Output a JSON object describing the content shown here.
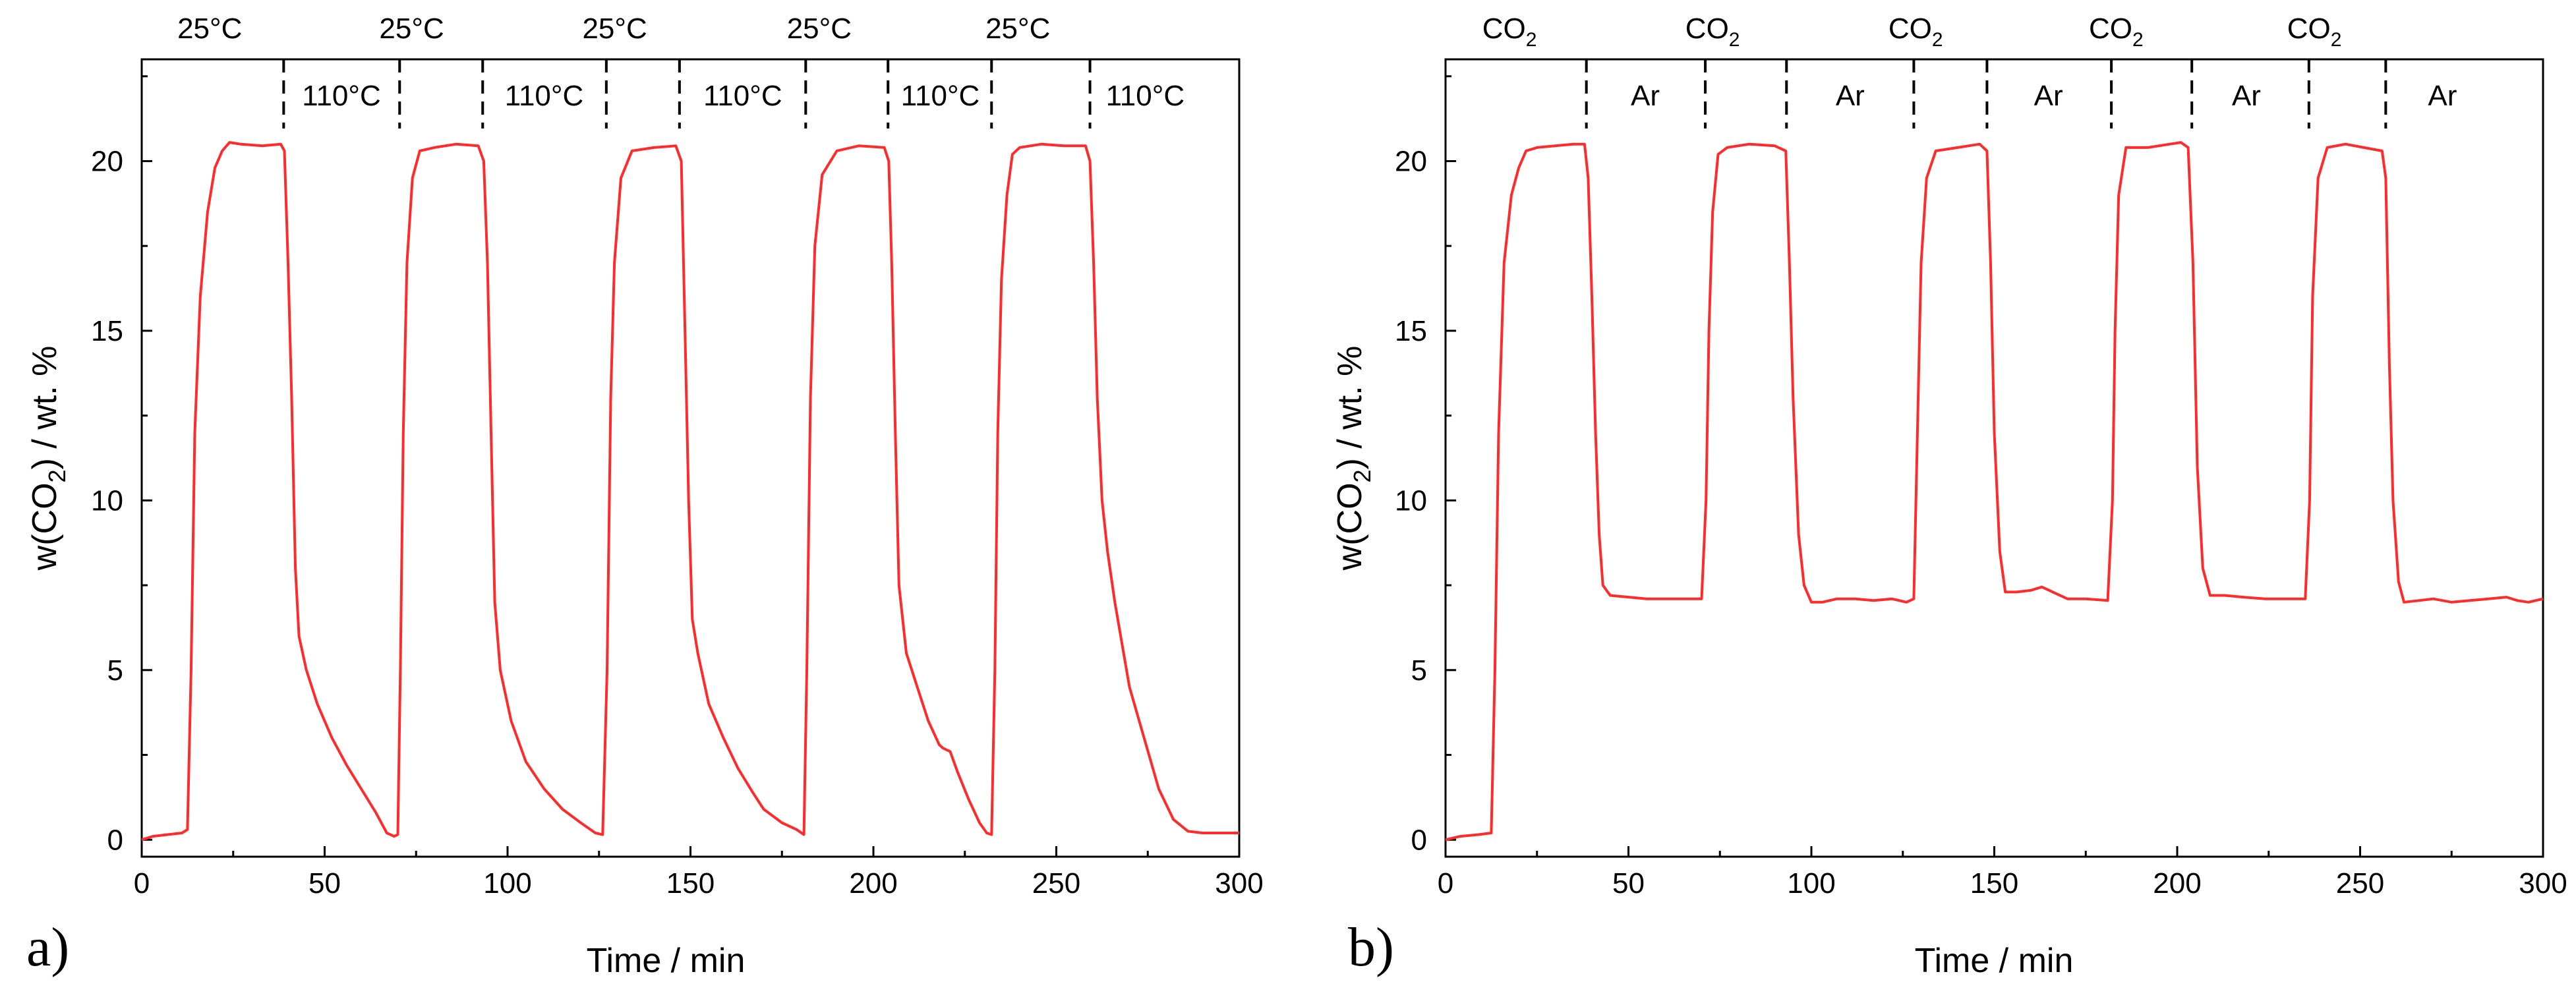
{
  "chart_data": [
    {
      "panel_label": "a)",
      "type": "line",
      "title": "",
      "xlabel": "Time / min",
      "ylabel_parts": [
        "w(CO",
        "2",
        ") / wt.  %"
      ],
      "xlim": [
        0,
        300
      ],
      "ylim": [
        -0.5,
        23
      ],
      "xticks": [
        0,
        50,
        100,
        150,
        200,
        250,
        300
      ],
      "yticks": [
        0,
        5,
        10,
        15,
        20
      ],
      "grid": false,
      "color": "#ff2a2a",
      "dividers": [
        38.8,
        70.5,
        93.2,
        127,
        147,
        181.5,
        204,
        232.3,
        259.2
      ],
      "top_labels": [
        {
          "x": 18.6,
          "text": "25°C",
          "row": 1
        },
        {
          "x": 54.6,
          "text": "110°C",
          "row": 2
        },
        {
          "x": 73.8,
          "text": "25°C",
          "row": 1
        },
        {
          "x": 110,
          "text": "110°C",
          "row": 2
        },
        {
          "x": 129.3,
          "text": "25°C",
          "row": 1
        },
        {
          "x": 164.3,
          "text": "110°C",
          "row": 2
        },
        {
          "x": 185.2,
          "text": "25°C",
          "row": 1
        },
        {
          "x": 218.3,
          "text": "110°C",
          "row": 2
        },
        {
          "x": 239.5,
          "text": "25°C",
          "row": 1
        },
        {
          "x": 274.3,
          "text": "110°C",
          "row": 2
        }
      ],
      "series": [
        {
          "name": "w(CO2)",
          "points": [
            [
              0,
              0
            ],
            [
              3,
              0.1
            ],
            [
              7,
              0.15
            ],
            [
              11,
              0.2
            ],
            [
              12.5,
              0.3
            ],
            [
              13.5,
              5
            ],
            [
              14.5,
              12
            ],
            [
              16,
              16
            ],
            [
              18,
              18.5
            ],
            [
              20,
              19.8
            ],
            [
              22,
              20.3
            ],
            [
              24,
              20.55
            ],
            [
              27,
              20.5
            ],
            [
              33,
              20.45
            ],
            [
              38,
              20.5
            ],
            [
              39,
              20.3
            ],
            [
              40,
              17
            ],
            [
              41,
              13
            ],
            [
              42,
              8
            ],
            [
              43,
              6
            ],
            [
              45,
              5
            ],
            [
              48,
              4
            ],
            [
              52,
              3
            ],
            [
              56,
              2.2
            ],
            [
              60,
              1.5
            ],
            [
              64,
              0.8
            ],
            [
              67,
              0.2
            ],
            [
              69,
              0.1
            ],
            [
              70,
              0.15
            ],
            [
              70.7,
              5
            ],
            [
              71.5,
              12
            ],
            [
              72.5,
              17
            ],
            [
              74,
              19.5
            ],
            [
              76,
              20.3
            ],
            [
              80,
              20.4
            ],
            [
              86,
              20.5
            ],
            [
              92,
              20.45
            ],
            [
              93.5,
              20
            ],
            [
              94.5,
              17
            ],
            [
              95.5,
              12
            ],
            [
              96.5,
              7
            ],
            [
              98,
              5
            ],
            [
              101,
              3.5
            ],
            [
              105,
              2.3
            ],
            [
              110,
              1.5
            ],
            [
              115,
              0.9
            ],
            [
              120,
              0.5
            ],
            [
              124,
              0.2
            ],
            [
              126,
              0.15
            ],
            [
              127.2,
              5
            ],
            [
              128.2,
              13
            ],
            [
              129.2,
              17
            ],
            [
              131,
              19.5
            ],
            [
              134,
              20.3
            ],
            [
              140,
              20.4
            ],
            [
              146,
              20.45
            ],
            [
              147.5,
              20
            ],
            [
              148.5,
              15
            ],
            [
              149.5,
              10
            ],
            [
              150.5,
              6.5
            ],
            [
              152,
              5.5
            ],
            [
              155,
              4
            ],
            [
              159,
              3
            ],
            [
              163,
              2.1
            ],
            [
              167,
              1.4
            ],
            [
              170,
              0.9
            ],
            [
              175,
              0.5
            ],
            [
              179,
              0.3
            ],
            [
              181,
              0.15
            ],
            [
              181.8,
              5
            ],
            [
              182.8,
              13
            ],
            [
              184,
              17.5
            ],
            [
              186,
              19.6
            ],
            [
              190,
              20.3
            ],
            [
              196,
              20.45
            ],
            [
              203,
              20.4
            ],
            [
              204.2,
              20
            ],
            [
              205,
              17
            ],
            [
              206,
              12
            ],
            [
              207,
              7.5
            ],
            [
              209,
              5.5
            ],
            [
              212,
              4.5
            ],
            [
              215,
              3.5
            ],
            [
              218,
              2.8
            ],
            [
              219,
              2.7
            ],
            [
              221,
              2.6
            ],
            [
              223,
              2
            ],
            [
              226,
              1.2
            ],
            [
              229,
              0.5
            ],
            [
              231,
              0.2
            ],
            [
              232.3,
              0.15
            ],
            [
              233.2,
              5
            ],
            [
              234,
              12
            ],
            [
              235,
              16.5
            ],
            [
              236.5,
              19
            ],
            [
              238,
              20.2
            ],
            [
              240,
              20.4
            ],
            [
              246,
              20.5
            ],
            [
              252,
              20.45
            ],
            [
              258,
              20.45
            ],
            [
              259.2,
              20
            ],
            [
              260.2,
              17
            ],
            [
              261.2,
              13
            ],
            [
              262.5,
              10
            ],
            [
              264,
              8.5
            ],
            [
              266,
              7
            ],
            [
              270,
              4.5
            ],
            [
              274,
              3
            ],
            [
              278,
              1.5
            ],
            [
              282,
              0.6
            ],
            [
              286,
              0.25
            ],
            [
              290,
              0.2
            ],
            [
              295,
              0.2
            ],
            [
              300,
              0.2
            ]
          ]
        }
      ]
    },
    {
      "panel_label": "b)",
      "type": "line",
      "title": "",
      "xlabel": "Time / min",
      "ylabel_parts": [
        "w(CO",
        "2",
        ") / wt.  %"
      ],
      "xlim": [
        0,
        300
      ],
      "ylim": [
        -0.5,
        23
      ],
      "xticks": [
        0,
        50,
        100,
        150,
        200,
        250,
        300
      ],
      "yticks": [
        0,
        5,
        10,
        15,
        20
      ],
      "grid": false,
      "color": "#ff2a2a",
      "dividers": [
        38.5,
        71,
        93.2,
        128,
        148,
        182,
        204,
        236,
        257
      ],
      "top_labels": [
        {
          "x": 17.5,
          "text": "CO",
          "sub": "2",
          "row": 1
        },
        {
          "x": 54.6,
          "text": "Ar",
          "row": 2
        },
        {
          "x": 73,
          "text": "CO",
          "sub": "2",
          "row": 1
        },
        {
          "x": 110.6,
          "text": "Ar",
          "row": 2
        },
        {
          "x": 128.5,
          "text": "CO",
          "sub": "2",
          "row": 1
        },
        {
          "x": 164.8,
          "text": "Ar",
          "row": 2
        },
        {
          "x": 183.3,
          "text": "CO",
          "sub": "2",
          "row": 1
        },
        {
          "x": 218.9,
          "text": "Ar",
          "row": 2
        },
        {
          "x": 237.5,
          "text": "CO",
          "sub": "2",
          "row": 1
        },
        {
          "x": 272.5,
          "text": "Ar",
          "row": 2
        }
      ],
      "series": [
        {
          "name": "w(CO2)",
          "points": [
            [
              0,
              0
            ],
            [
              4,
              0.1
            ],
            [
              9,
              0.15
            ],
            [
              12.5,
              0.2
            ],
            [
              13.5,
              5
            ],
            [
              14.5,
              12
            ],
            [
              16,
              17
            ],
            [
              18,
              19
            ],
            [
              20,
              19.8
            ],
            [
              22,
              20.3
            ],
            [
              25,
              20.4
            ],
            [
              30,
              20.45
            ],
            [
              35,
              20.5
            ],
            [
              38,
              20.5
            ],
            [
              39,
              19.5
            ],
            [
              40,
              16
            ],
            [
              41,
              12
            ],
            [
              42,
              9
            ],
            [
              43,
              7.5
            ],
            [
              45,
              7.2
            ],
            [
              50,
              7.15
            ],
            [
              55,
              7.1
            ],
            [
              60,
              7.1
            ],
            [
              65,
              7.1
            ],
            [
              70,
              7.1
            ],
            [
              71.2,
              10
            ],
            [
              72,
              15
            ],
            [
              73,
              18.5
            ],
            [
              74.5,
              20.2
            ],
            [
              77,
              20.4
            ],
            [
              83,
              20.5
            ],
            [
              90,
              20.45
            ],
            [
              93,
              20.3
            ],
            [
              94,
              17
            ],
            [
              95,
              13
            ],
            [
              96.5,
              9
            ],
            [
              98,
              7.5
            ],
            [
              100,
              7.0
            ],
            [
              103,
              7.0
            ],
            [
              107,
              7.1
            ],
            [
              112,
              7.1
            ],
            [
              117,
              7.05
            ],
            [
              122,
              7.1
            ],
            [
              126,
              7.0
            ],
            [
              128,
              7.1
            ],
            [
              129,
              12
            ],
            [
              130,
              17
            ],
            [
              131.5,
              19.5
            ],
            [
              134,
              20.3
            ],
            [
              140,
              20.4
            ],
            [
              146,
              20.5
            ],
            [
              148,
              20.3
            ],
            [
              149,
              17
            ],
            [
              150,
              12
            ],
            [
              151.5,
              8.5
            ],
            [
              153,
              7.3
            ],
            [
              156,
              7.3
            ],
            [
              160,
              7.35
            ],
            [
              163,
              7.45
            ],
            [
              166,
              7.3
            ],
            [
              170,
              7.1
            ],
            [
              175,
              7.1
            ],
            [
              181,
              7.05
            ],
            [
              182.3,
              10
            ],
            [
              183,
              15
            ],
            [
              184,
              19
            ],
            [
              186,
              20.4
            ],
            [
              192,
              20.4
            ],
            [
              198,
              20.5
            ],
            [
              201,
              20.55
            ],
            [
              203,
              20.4
            ],
            [
              204.3,
              17
            ],
            [
              205.5,
              11
            ],
            [
              207,
              8
            ],
            [
              209,
              7.2
            ],
            [
              213,
              7.2
            ],
            [
              218,
              7.15
            ],
            [
              224,
              7.1
            ],
            [
              230,
              7.1
            ],
            [
              235,
              7.1
            ],
            [
              236.2,
              10
            ],
            [
              237,
              16
            ],
            [
              238.5,
              19.5
            ],
            [
              241,
              20.4
            ],
            [
              246,
              20.5
            ],
            [
              251,
              20.4
            ],
            [
              256,
              20.3
            ],
            [
              257,
              19.5
            ],
            [
              258,
              14
            ],
            [
              259,
              10
            ],
            [
              260.5,
              7.6
            ],
            [
              262,
              7.0
            ],
            [
              266,
              7.05
            ],
            [
              270,
              7.1
            ],
            [
              275,
              7.0
            ],
            [
              280,
              7.05
            ],
            [
              285,
              7.1
            ],
            [
              290,
              7.15
            ],
            [
              293,
              7.05
            ],
            [
              296,
              7.0
            ],
            [
              300,
              7.1
            ]
          ]
        }
      ]
    }
  ]
}
